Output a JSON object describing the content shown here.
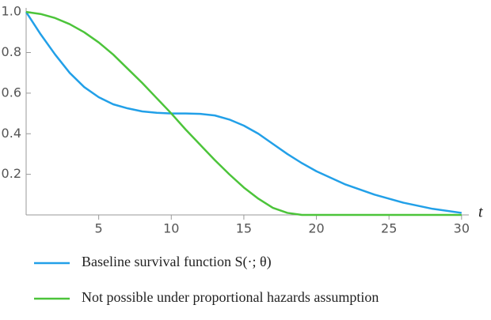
{
  "chart_data": {
    "type": "line",
    "x_label": "t",
    "x": [
      0,
      1,
      2,
      3,
      4,
      5,
      6,
      7,
      8,
      9,
      10,
      11,
      12,
      13,
      14,
      15,
      16,
      17,
      18,
      19,
      20,
      22,
      24,
      26,
      28,
      30
    ],
    "series": [
      {
        "name": "Baseline survival function S(·; θ)",
        "color": "#22a0e8",
        "values": [
          1,
          0.89,
          0.79,
          0.7,
          0.63,
          0.58,
          0.545,
          0.525,
          0.51,
          0.503,
          0.5,
          0.5,
          0.498,
          0.49,
          0.47,
          0.44,
          0.4,
          0.35,
          0.3,
          0.255,
          0.215,
          0.15,
          0.1,
          0.06,
          0.03,
          0.01
        ]
      },
      {
        "name": "Not possible under proportional hazards assumption",
        "color": "#4cc43a",
        "values": [
          1,
          0.99,
          0.97,
          0.94,
          0.9,
          0.85,
          0.79,
          0.72,
          0.65,
          0.575,
          0.5,
          0.42,
          0.345,
          0.27,
          0.2,
          0.135,
          0.08,
          0.035,
          0.01,
          0,
          0,
          0,
          0,
          0,
          0,
          0
        ]
      }
    ],
    "xlim": [
      0,
      30.5
    ],
    "ylim": [
      0,
      1.02
    ],
    "xticks": [
      5,
      10,
      15,
      20,
      25,
      30
    ],
    "yticks": [
      0.2,
      0.4,
      0.6,
      0.8,
      {
        "value": 1,
        "label": "1.0"
      }
    ]
  }
}
